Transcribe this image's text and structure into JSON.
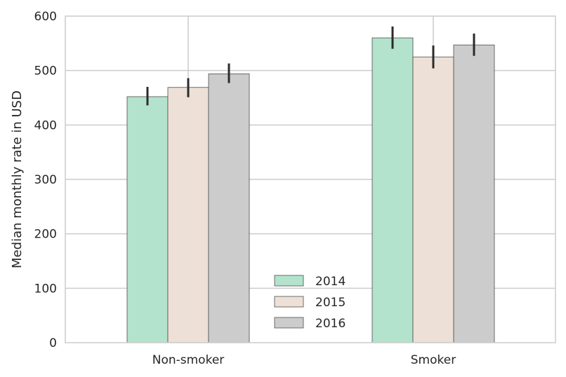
{
  "chart_data": {
    "type": "bar",
    "title": "",
    "xlabel": "",
    "ylabel": "Median monthly rate in USD",
    "categories": [
      "Non-smoker",
      "Smoker"
    ],
    "series": [
      {
        "name": "2014",
        "color": "#b3e2cd",
        "values": [
          452,
          560
        ],
        "error_low": [
          436,
          540
        ],
        "error_high": [
          470,
          581
        ]
      },
      {
        "name": "2015",
        "color": "#ede0d6",
        "values": [
          469,
          525
        ],
        "error_low": [
          451,
          504
        ],
        "error_high": [
          486,
          546
        ]
      },
      {
        "name": "2016",
        "color": "#cccccc",
        "values": [
          494,
          547
        ],
        "error_low": [
          477,
          527
        ],
        "error_high": [
          513,
          568
        ]
      }
    ],
    "ylim": [
      0,
      600
    ],
    "yticks": [
      0,
      100,
      200,
      300,
      400,
      500,
      600
    ],
    "grid": true,
    "legend_position": "lower-center"
  }
}
